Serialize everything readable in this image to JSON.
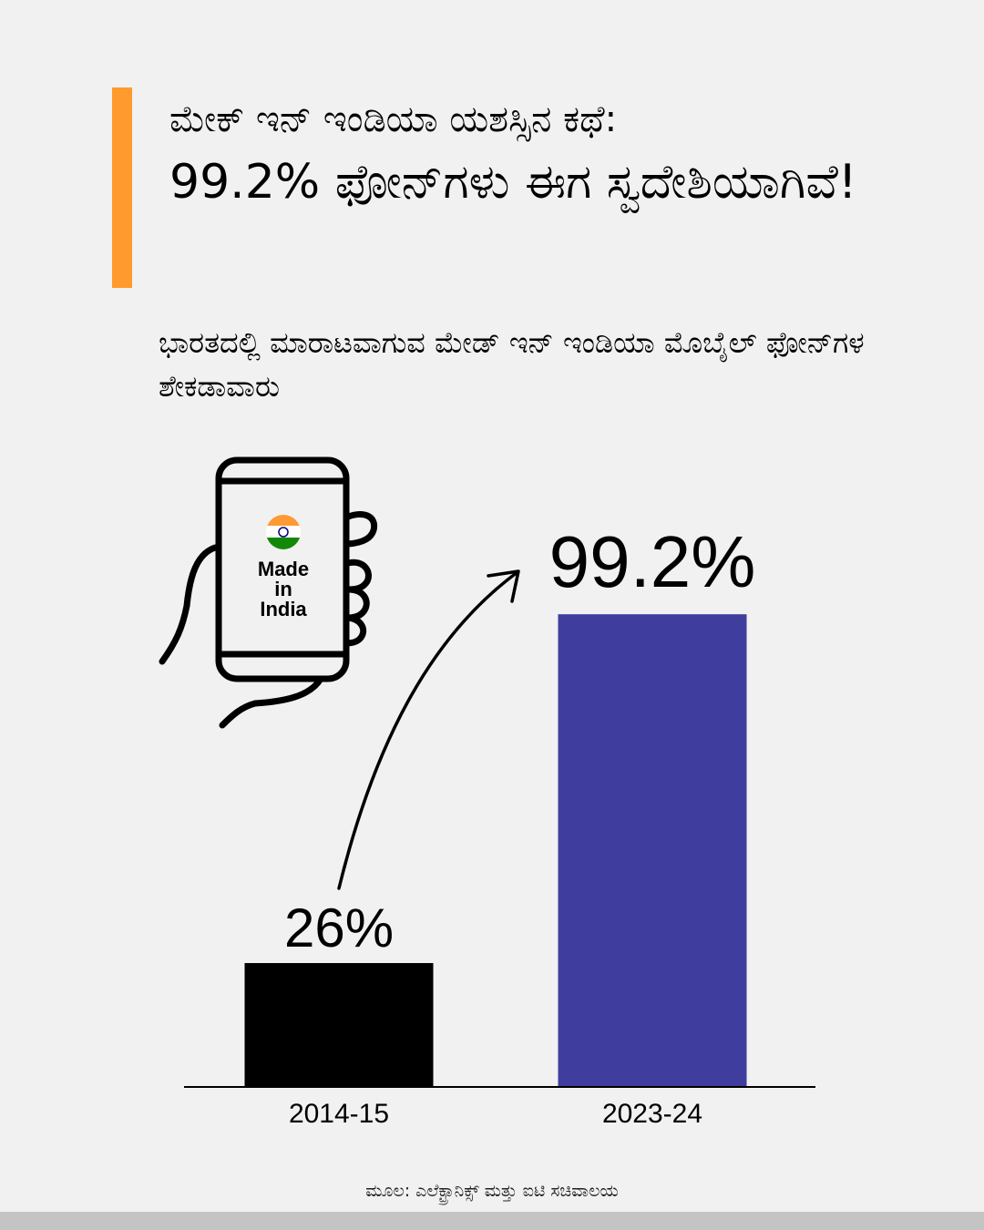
{
  "title": {
    "line1": "ಮೇಕ್ ಇನ್ ಇಂಡಿಯಾ ಯಶಸ್ಸಿನ ಕಥೆ:",
    "line2": "99.2% ಫೋನ್‌ಗಳು ಈಗ ಸ್ವದೇಶಿಯಾಗಿವೆ!"
  },
  "subtitle": "ಭಾರತದಲ್ಲಿ ಮಾರಾಟವಾಗುವ ಮೇಡ್ ಇನ್ ಇಂಡಿಯಾ ಮೊಬೈಲ್ ಫೋನ್‌ಗಳ ಶೇಕಡಾವಾರು",
  "illustration": {
    "icon": "hand-holding-phone-icon",
    "flag_icon": "india-flag-icon",
    "screen_lines": [
      "Made",
      "in",
      "India"
    ]
  },
  "chart_data": {
    "type": "bar",
    "categories": [
      "2014-15",
      "2023-24"
    ],
    "values": [
      26,
      99.2
    ],
    "data_labels": [
      "26%",
      "99.2%"
    ],
    "colors": [
      "#000000",
      "#3f3e9e"
    ],
    "ylim": [
      0,
      100
    ],
    "grid": false,
    "annotation": "upward-arrow-from-first-to-second-bar"
  },
  "source": "ಮೂಲ: ಎಲೆಕ್ಟ್ರಾನಿಕ್ಸ್ ಮತ್ತು ಐಟಿ ಸಚಿವಾಲಯ",
  "colors": {
    "accent": "#ff9a2e",
    "background": "#f1f1f1",
    "flag_saffron": "#ff9933",
    "flag_green": "#138808",
    "chakra_blue": "#000080"
  }
}
